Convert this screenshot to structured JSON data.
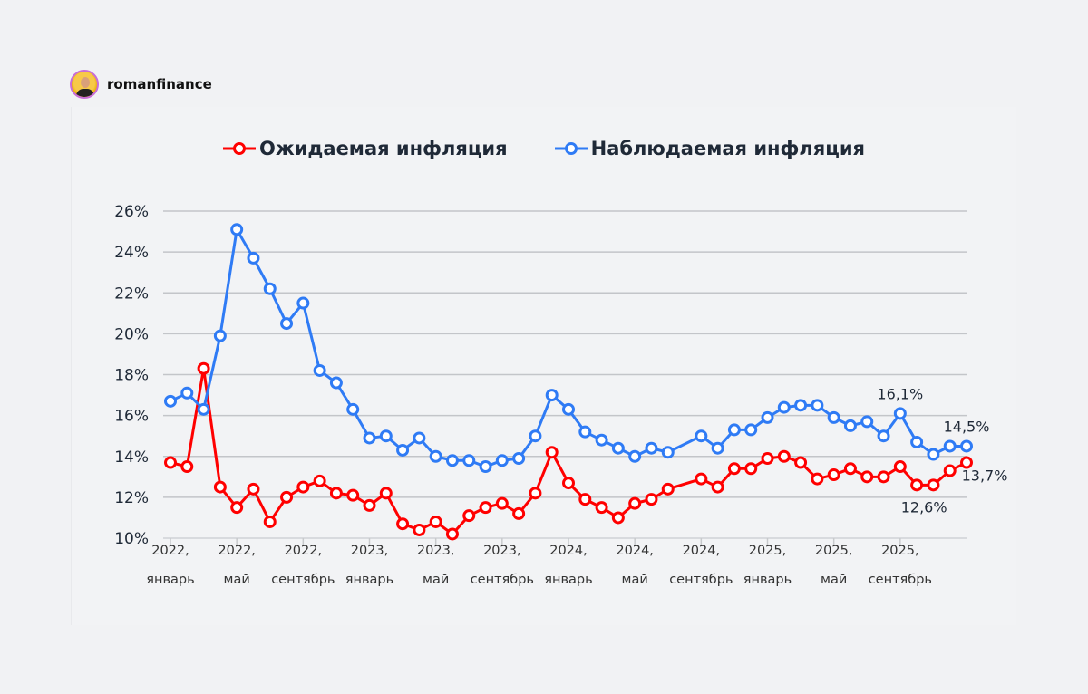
{
  "brand": {
    "name": "romanfinance"
  },
  "chart_data": {
    "type": "line",
    "title": "",
    "xlabel": "",
    "ylabel": "",
    "ylim": [
      10,
      26
    ],
    "y_ticks": [
      "10%",
      "12%",
      "14%",
      "16%",
      "18%",
      "20%",
      "22%",
      "24%",
      "26%"
    ],
    "y_tick_values": [
      10,
      12,
      14,
      16,
      18,
      20,
      22,
      24,
      26
    ],
    "x_range": [
      "2022-01",
      "2026-01"
    ],
    "x_ticks": [
      {
        "date": "2022-01",
        "year": "2022,",
        "month": "январь"
      },
      {
        "date": "2022-05",
        "year": "2022,",
        "month": "май"
      },
      {
        "date": "2022-09",
        "year": "2022,",
        "month": "сентябрь"
      },
      {
        "date": "2023-01",
        "year": "2023,",
        "month": "январь"
      },
      {
        "date": "2023-05",
        "year": "2023,",
        "month": "май"
      },
      {
        "date": "2023-09",
        "year": "2023,",
        "month": "сентябрь"
      },
      {
        "date": "2024-01",
        "year": "2024,",
        "month": "январь"
      },
      {
        "date": "2024-05",
        "year": "2024,",
        "month": "май"
      },
      {
        "date": "2024-09",
        "year": "2024,",
        "month": "сентябрь"
      },
      {
        "date": "2025-01",
        "year": "2025,",
        "month": "январь"
      },
      {
        "date": "2025-05",
        "year": "2025,",
        "month": "май"
      },
      {
        "date": "2025-09",
        "year": "2025,",
        "month": "сентябрь"
      }
    ],
    "grid": "horizontal",
    "legend_position": "top",
    "series": [
      {
        "name": "Ожидаемая инфляция",
        "color": "#ff0000",
        "points": [
          [
            "2022-01",
            13.7
          ],
          [
            "2022-02",
            13.5
          ],
          [
            "2022-03",
            18.3
          ],
          [
            "2022-04",
            12.5
          ],
          [
            "2022-05",
            11.5
          ],
          [
            "2022-06",
            12.4
          ],
          [
            "2022-07",
            10.8
          ],
          [
            "2022-08",
            12.0
          ],
          [
            "2022-09",
            12.5
          ],
          [
            "2022-10",
            12.8
          ],
          [
            "2022-11",
            12.2
          ],
          [
            "2022-12",
            12.1
          ],
          [
            "2023-01",
            11.6
          ],
          [
            "2023-02",
            12.2
          ],
          [
            "2023-03",
            10.7
          ],
          [
            "2023-04",
            10.4
          ],
          [
            "2023-05",
            10.8
          ],
          [
            "2023-06",
            10.2
          ],
          [
            "2023-07",
            11.1
          ],
          [
            "2023-08",
            11.5
          ],
          [
            "2023-09",
            11.7
          ],
          [
            "2023-10",
            11.2
          ],
          [
            "2023-11",
            12.2
          ],
          [
            "2023-12",
            14.2
          ],
          [
            "2024-01",
            12.7
          ],
          [
            "2024-02",
            11.9
          ],
          [
            "2024-03",
            11.5
          ],
          [
            "2024-04",
            11.0
          ],
          [
            "2024-05",
            11.7
          ],
          [
            "2024-06",
            11.9
          ],
          [
            "2024-07",
            12.4
          ],
          [
            "2024-09",
            12.9
          ],
          [
            "2024-10",
            12.5
          ],
          [
            "2024-11",
            13.4
          ],
          [
            "2024-12",
            13.4
          ],
          [
            "2025-01",
            13.9
          ],
          [
            "2025-02",
            14.0
          ],
          [
            "2025-03",
            13.7
          ],
          [
            "2025-04",
            12.9
          ],
          [
            "2025-05",
            13.1
          ],
          [
            "2025-06",
            13.4
          ],
          [
            "2025-07",
            13.0
          ],
          [
            "2025-08",
            13.0
          ],
          [
            "2025-09",
            13.5
          ],
          [
            "2025-10",
            12.6
          ],
          [
            "2025-11",
            12.6
          ],
          [
            "2025-12",
            13.3
          ],
          [
            "2026-01",
            13.7
          ]
        ]
      },
      {
        "name": "Наблюдаемая инфляция",
        "color": "#2f7bf5",
        "points": [
          [
            "2022-01",
            16.7
          ],
          [
            "2022-02",
            17.1
          ],
          [
            "2022-03",
            16.3
          ],
          [
            "2022-04",
            19.9
          ],
          [
            "2022-05",
            25.1
          ],
          [
            "2022-06",
            23.7
          ],
          [
            "2022-07",
            22.2
          ],
          [
            "2022-08",
            20.5
          ],
          [
            "2022-09",
            21.5
          ],
          [
            "2022-10",
            18.2
          ],
          [
            "2022-11",
            17.6
          ],
          [
            "2022-12",
            16.3
          ],
          [
            "2023-01",
            14.9
          ],
          [
            "2023-02",
            15.0
          ],
          [
            "2023-03",
            14.3
          ],
          [
            "2023-04",
            14.9
          ],
          [
            "2023-05",
            14.0
          ],
          [
            "2023-06",
            13.8
          ],
          [
            "2023-07",
            13.8
          ],
          [
            "2023-08",
            13.5
          ],
          [
            "2023-09",
            13.8
          ],
          [
            "2023-10",
            13.9
          ],
          [
            "2023-11",
            15.0
          ],
          [
            "2023-12",
            17.0
          ],
          [
            "2024-01",
            16.3
          ],
          [
            "2024-02",
            15.2
          ],
          [
            "2024-03",
            14.8
          ],
          [
            "2024-04",
            14.4
          ],
          [
            "2024-05",
            14.0
          ],
          [
            "2024-06",
            14.4
          ],
          [
            "2024-07",
            14.2
          ],
          [
            "2024-09",
            15.0
          ],
          [
            "2024-10",
            14.4
          ],
          [
            "2024-11",
            15.3
          ],
          [
            "2024-12",
            15.3
          ],
          [
            "2025-01",
            15.9
          ],
          [
            "2025-02",
            16.4
          ],
          [
            "2025-03",
            16.5
          ],
          [
            "2025-04",
            16.5
          ],
          [
            "2025-05",
            15.9
          ],
          [
            "2025-06",
            15.5
          ],
          [
            "2025-07",
            15.7
          ],
          [
            "2025-08",
            15.0
          ],
          [
            "2025-09",
            16.1
          ],
          [
            "2025-10",
            14.7
          ],
          [
            "2025-11",
            14.1
          ],
          [
            "2025-12",
            14.5
          ],
          [
            "2026-01",
            14.5
          ]
        ]
      }
    ],
    "annotations": [
      {
        "text": "16,1%",
        "series": 1,
        "date": "2025-09",
        "position": "above"
      },
      {
        "text": "14,5%",
        "series": 1,
        "date": "2026-01",
        "position": "above"
      },
      {
        "text": "13,7%",
        "series": 0,
        "date": "2026-01",
        "position": "below-right"
      },
      {
        "text": "12,6%",
        "series": 0,
        "date": "2025-10",
        "position": "below"
      }
    ]
  }
}
